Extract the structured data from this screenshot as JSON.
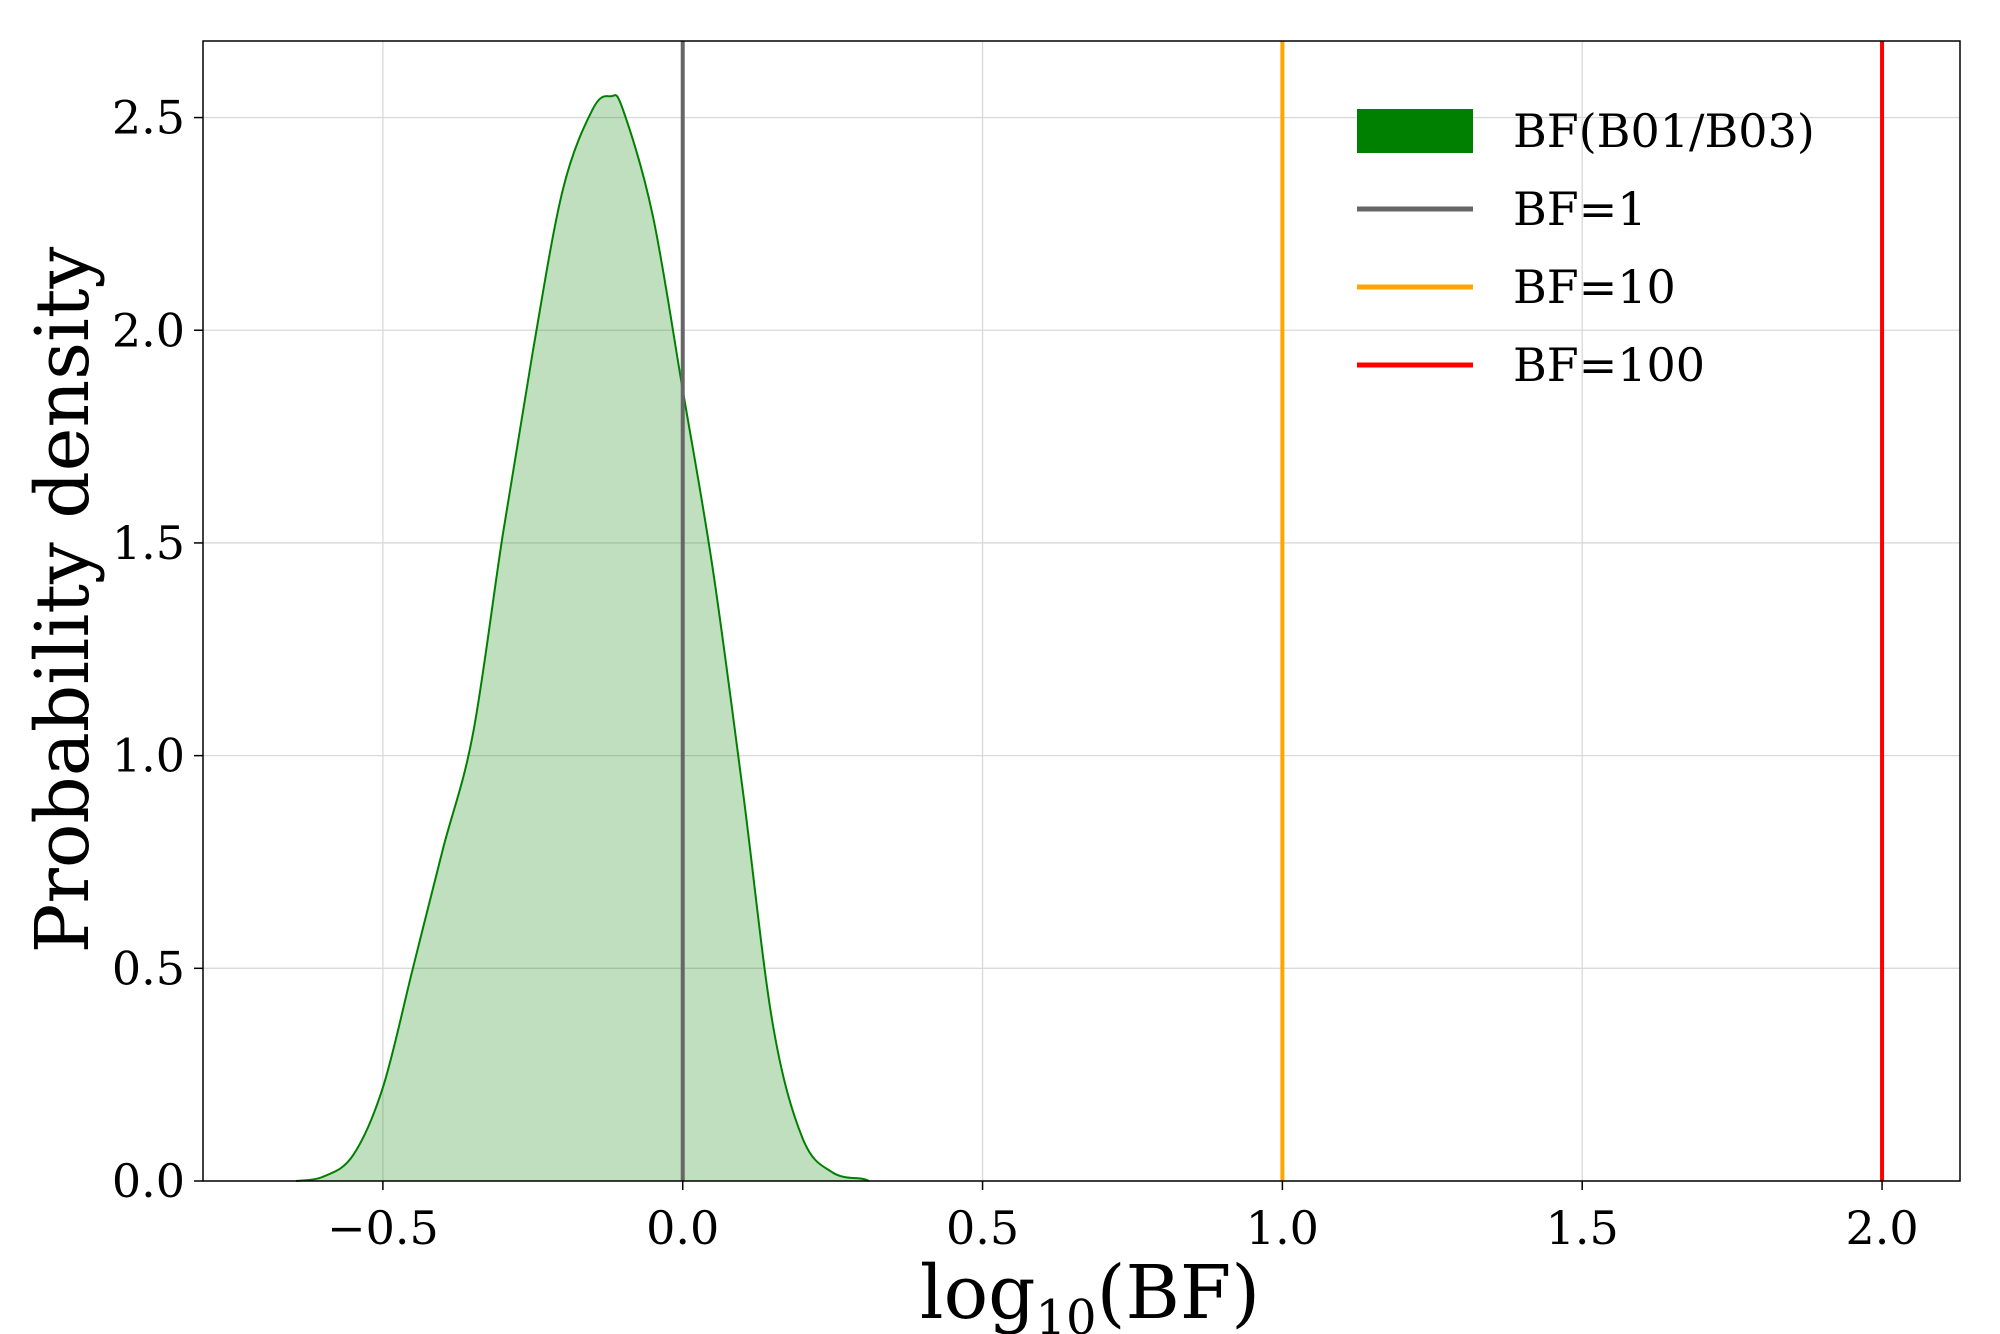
{
  "chart_data": {
    "type": "area",
    "title": "",
    "xlabel": "log10(BF)",
    "xlabel_parts": {
      "base": "log",
      "sub": "10",
      "arg": "(BF)"
    },
    "ylabel": "Probability density",
    "xlim": [
      -0.8,
      2.13
    ],
    "ylim": [
      0,
      2.68
    ],
    "x_ticks": [
      -0.5,
      0.0,
      0.5,
      1.0,
      1.5,
      2.0
    ],
    "x_tick_labels": [
      "−0.5",
      "0.0",
      "0.5",
      "1.0",
      "1.5",
      "2.0"
    ],
    "y_ticks": [
      0.0,
      0.5,
      1.0,
      1.5,
      2.0,
      2.5
    ],
    "y_tick_labels": [
      "0.0",
      "0.5",
      "1.0",
      "1.5",
      "2.0",
      "2.5"
    ],
    "grid": true,
    "legend_position": "top-right",
    "density": {
      "name": "BF(B01/B03)",
      "color": "#008000",
      "fill_color": "#008000",
      "fill_opacity": 0.25,
      "x": [
        -0.645,
        -0.6,
        -0.55,
        -0.5,
        -0.45,
        -0.4,
        -0.35,
        -0.3,
        -0.25,
        -0.2,
        -0.15,
        -0.12,
        -0.1,
        -0.05,
        0.0,
        0.05,
        0.1,
        0.15,
        0.2,
        0.25,
        0.3,
        0.31
      ],
      "y": [
        0.0,
        0.01,
        0.06,
        0.22,
        0.5,
        0.78,
        1.05,
        1.52,
        1.95,
        2.33,
        2.52,
        2.55,
        2.52,
        2.27,
        1.86,
        1.44,
        0.92,
        0.37,
        0.1,
        0.02,
        0.005,
        0.0
      ]
    },
    "reference_lines": [
      {
        "name": "BF=1",
        "x": 0.0,
        "color": "#666666"
      },
      {
        "name": "BF=10",
        "x": 1.0,
        "color": "#ffa500"
      },
      {
        "name": "BF=100",
        "x": 2.0,
        "color": "#ff0000"
      }
    ]
  }
}
